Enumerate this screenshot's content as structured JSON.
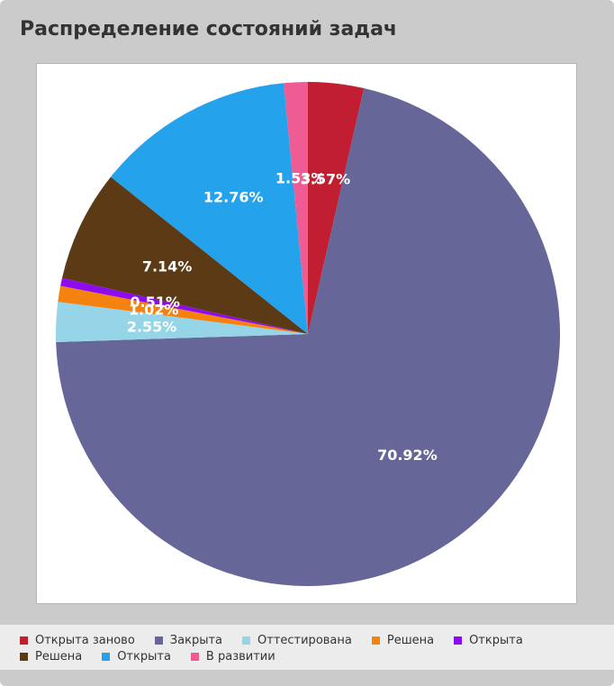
{
  "panel": {
    "title": "Распределение состояний задач"
  },
  "chart_data": {
    "type": "pie",
    "title": "Распределение состояний задач",
    "categories": [
      "Открыта заново",
      "Закрыта",
      "Оттестирована",
      "Решена",
      "Открыта",
      "Решена",
      "Открыта",
      "В развитии"
    ],
    "values": [
      3.57,
      70.92,
      2.55,
      1.02,
      0.51,
      7.14,
      12.76,
      1.53
    ],
    "value_labels": [
      "3.57%",
      "70.92%",
      "2.55%",
      "1.02%",
      "0.51%",
      "7.14%",
      "12.76%",
      "1.53%"
    ],
    "colors": [
      "#c11f31",
      "#676699",
      "#96d5e8",
      "#f5820f",
      "#8f0bef",
      "#5c3a15",
      "#25a2ec",
      "#ef5b93"
    ],
    "start_angle": "top",
    "direction": "clockwise",
    "legend": "bottom"
  }
}
